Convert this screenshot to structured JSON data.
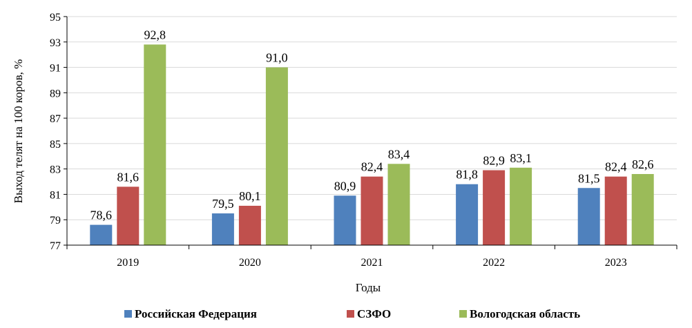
{
  "chart_data": {
    "type": "bar",
    "title": "",
    "xlabel": "Годы",
    "ylabel": "Выход телят на 100 коров, %",
    "categories": [
      "2019",
      "2020",
      "2021",
      "2022",
      "2023"
    ],
    "ylim": [
      77,
      95
    ],
    "yticks": [
      77,
      79,
      81,
      83,
      85,
      87,
      89,
      91,
      93,
      95
    ],
    "grid": true,
    "legend_position": "bottom",
    "series": [
      {
        "name": "Российская Федерация",
        "color": "#4f81bd",
        "values": [
          78.6,
          79.5,
          80.9,
          81.8,
          81.5
        ],
        "labels": [
          "78,6",
          "79,5",
          "80,9",
          "81,8",
          "81,5"
        ]
      },
      {
        "name": "СЗФО",
        "color": "#c0504d",
        "values": [
          81.6,
          80.1,
          82.4,
          82.9,
          82.4
        ],
        "labels": [
          "81,6",
          "80,1",
          "82,4",
          "82,9",
          "82,4"
        ]
      },
      {
        "name": "Вологодская область",
        "color": "#9bbb59",
        "values": [
          92.8,
          91.0,
          83.4,
          83.1,
          82.6
        ],
        "labels": [
          "92,8",
          "91,0",
          "83,4",
          "83,1",
          "82,6"
        ]
      }
    ]
  }
}
